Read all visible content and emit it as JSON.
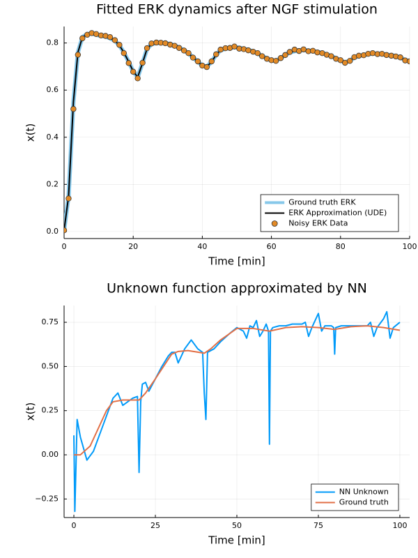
{
  "chart_data": [
    {
      "type": "line",
      "title": "Fitted ERK dynamics after NGF stimulation",
      "xlabel": "Time [min]",
      "ylabel": "x(t)",
      "xlim": [
        0,
        100
      ],
      "xticks": [
        0,
        20,
        40,
        60,
        80,
        100
      ],
      "ylim": [
        -0.03,
        0.87
      ],
      "yticks": [
        {
          "value": 0,
          "label": "0.0"
        },
        0.2,
        0.4,
        0.6,
        0.8
      ],
      "grid": true,
      "legend": "bottom right",
      "x": [
        0,
        1.3,
        2.7,
        4,
        5.3,
        6.7,
        8,
        9.3,
        10.7,
        12,
        13.3,
        14.7,
        16,
        17.3,
        18.7,
        20,
        21.3,
        22.7,
        24,
        25.3,
        26.7,
        28,
        29.3,
        30.7,
        32,
        33.3,
        34.7,
        36,
        37.3,
        38.7,
        40,
        41.3,
        42.7,
        44,
        45.3,
        46.7,
        48,
        49.3,
        50.7,
        52,
        53.3,
        54.7,
        56,
        57.3,
        58.7,
        60,
        61.3,
        62.7,
        64,
        65.3,
        66.7,
        68,
        69.3,
        70.7,
        72,
        73.3,
        74.7,
        76,
        77.3,
        78.7,
        80,
        81.3,
        82.7,
        84,
        85.3,
        86.7,
        88,
        89.3,
        90.7,
        92,
        93.3,
        94.7,
        96,
        97.3,
        98.7,
        100
      ],
      "series": [
        {
          "name": "Ground truth ERK",
          "color": "#87c8ea",
          "mode": "lines",
          "values": [
            0.005,
            0.15,
            0.55,
            0.76,
            0.825,
            0.838,
            0.84,
            0.835,
            0.83,
            0.828,
            0.82,
            0.81,
            0.79,
            0.76,
            0.72,
            0.68,
            0.655,
            0.715,
            0.775,
            0.795,
            0.8,
            0.8,
            0.8,
            0.795,
            0.79,
            0.78,
            0.77,
            0.755,
            0.74,
            0.72,
            0.705,
            0.7,
            0.72,
            0.75,
            0.77,
            0.775,
            0.78,
            0.782,
            0.78,
            0.775,
            0.77,
            0.765,
            0.755,
            0.745,
            0.735,
            0.725,
            0.725,
            0.735,
            0.75,
            0.76,
            0.765,
            0.768,
            0.77,
            0.768,
            0.765,
            0.762,
            0.758,
            0.752,
            0.745,
            0.735,
            0.725,
            0.718,
            0.725,
            0.738,
            0.745,
            0.75,
            0.752,
            0.755,
            0.755,
            0.753,
            0.75,
            0.748,
            0.745,
            0.738,
            0.728,
            0.722
          ]
        },
        {
          "name": "ERK Approximation (UDE)",
          "color": "#000000",
          "mode": "lines",
          "values": [
            0.005,
            0.15,
            0.55,
            0.76,
            0.825,
            0.838,
            0.84,
            0.835,
            0.83,
            0.828,
            0.82,
            0.81,
            0.79,
            0.76,
            0.72,
            0.68,
            0.655,
            0.715,
            0.775,
            0.795,
            0.8,
            0.8,
            0.8,
            0.795,
            0.79,
            0.78,
            0.77,
            0.755,
            0.74,
            0.72,
            0.705,
            0.7,
            0.72,
            0.75,
            0.77,
            0.775,
            0.78,
            0.782,
            0.78,
            0.775,
            0.77,
            0.765,
            0.755,
            0.745,
            0.735,
            0.725,
            0.725,
            0.735,
            0.75,
            0.76,
            0.765,
            0.768,
            0.77,
            0.768,
            0.765,
            0.762,
            0.758,
            0.752,
            0.745,
            0.735,
            0.725,
            0.718,
            0.725,
            0.738,
            0.745,
            0.75,
            0.752,
            0.755,
            0.755,
            0.753,
            0.75,
            0.748,
            0.745,
            0.738,
            0.728,
            0.722
          ]
        },
        {
          "name": "Noisy ERK Data",
          "color": "#e28a26",
          "mode": "markers",
          "values": [
            0.005,
            0.14,
            0.52,
            0.75,
            0.82,
            0.835,
            0.842,
            0.838,
            0.832,
            0.83,
            0.825,
            0.812,
            0.792,
            0.757,
            0.715,
            0.678,
            0.65,
            0.716,
            0.778,
            0.798,
            0.802,
            0.801,
            0.799,
            0.793,
            0.788,
            0.779,
            0.768,
            0.757,
            0.738,
            0.722,
            0.704,
            0.698,
            0.722,
            0.752,
            0.772,
            0.778,
            0.779,
            0.785,
            0.776,
            0.774,
            0.769,
            0.763,
            0.757,
            0.744,
            0.733,
            0.727,
            0.724,
            0.736,
            0.749,
            0.762,
            0.772,
            0.766,
            0.773,
            0.765,
            0.767,
            0.76,
            0.757,
            0.75,
            0.744,
            0.733,
            0.727,
            0.716,
            0.724,
            0.74,
            0.746,
            0.748,
            0.754,
            0.757,
            0.753,
            0.754,
            0.749,
            0.746,
            0.743,
            0.739,
            0.726,
            0.722
          ]
        }
      ]
    },
    {
      "type": "line",
      "title": "Unknown function approximated by NN",
      "xlabel": "Time [min]",
      "ylabel": "x(t)",
      "xlim": [
        -3,
        103
      ],
      "xticks": [
        0,
        25,
        50,
        75,
        100
      ],
      "ylim": [
        -0.355,
        0.845
      ],
      "yticks": [
        {
          "value": -0.25,
          "label": "−0.25"
        },
        {
          "value": 0,
          "label": "0.00"
        },
        0.25,
        {
          "value": 0.5,
          "label": "0.50"
        },
        0.75
      ],
      "grid": true,
      "legend": "bottom right",
      "series": [
        {
          "name": "NN Unknown",
          "color": "#009af9",
          "mode": "lines",
          "x": [
            0,
            0.3,
            1,
            2,
            4,
            6,
            8,
            10,
            12,
            13.5,
            15,
            16.5,
            18,
            19.5,
            20,
            20.5,
            21,
            22,
            23,
            25,
            27,
            29,
            30,
            31,
            32,
            34,
            36,
            38,
            39.5,
            40,
            40.5,
            41,
            43,
            45,
            48,
            50,
            52,
            53,
            54,
            55,
            56,
            57,
            58,
            59,
            59.7,
            60,
            60.3,
            61,
            63,
            65,
            67,
            70,
            71,
            72,
            73,
            75,
            76,
            77,
            79,
            79.7,
            80,
            80.3,
            82,
            85,
            88,
            90,
            91,
            92,
            93,
            95,
            96,
            97,
            98,
            100
          ],
          "values": [
            0.11,
            -0.32,
            0.2,
            0.1,
            -0.03,
            0.02,
            0.12,
            0.22,
            0.32,
            0.35,
            0.28,
            0.3,
            0.32,
            0.33,
            -0.1,
            0.3,
            0.4,
            0.41,
            0.36,
            0.43,
            0.5,
            0.56,
            0.58,
            0.58,
            0.52,
            0.6,
            0.65,
            0.6,
            0.58,
            0.35,
            0.2,
            0.58,
            0.6,
            0.64,
            0.69,
            0.72,
            0.7,
            0.66,
            0.73,
            0.72,
            0.76,
            0.67,
            0.7,
            0.74,
            0.7,
            0.06,
            0.7,
            0.72,
            0.73,
            0.73,
            0.74,
            0.74,
            0.75,
            0.67,
            0.72,
            0.8,
            0.7,
            0.73,
            0.73,
            0.72,
            0.57,
            0.72,
            0.73,
            0.73,
            0.73,
            0.73,
            0.75,
            0.67,
            0.72,
            0.77,
            0.81,
            0.66,
            0.72,
            0.75
          ]
        },
        {
          "name": "Ground truth",
          "color": "#e26f46",
          "mode": "lines",
          "x": [
            0,
            2,
            5,
            8,
            10,
            12,
            15,
            20,
            22,
            25,
            30,
            32,
            35,
            40,
            42,
            45,
            50,
            55,
            60,
            65,
            70,
            75,
            80,
            85,
            90,
            95,
            100
          ],
          "values": [
            0,
            0,
            0.05,
            0.17,
            0.25,
            0.3,
            0.31,
            0.31,
            0.35,
            0.43,
            0.57,
            0.585,
            0.59,
            0.575,
            0.6,
            0.65,
            0.715,
            0.715,
            0.7,
            0.72,
            0.725,
            0.72,
            0.71,
            0.725,
            0.73,
            0.72,
            0.705
          ]
        }
      ]
    }
  ]
}
